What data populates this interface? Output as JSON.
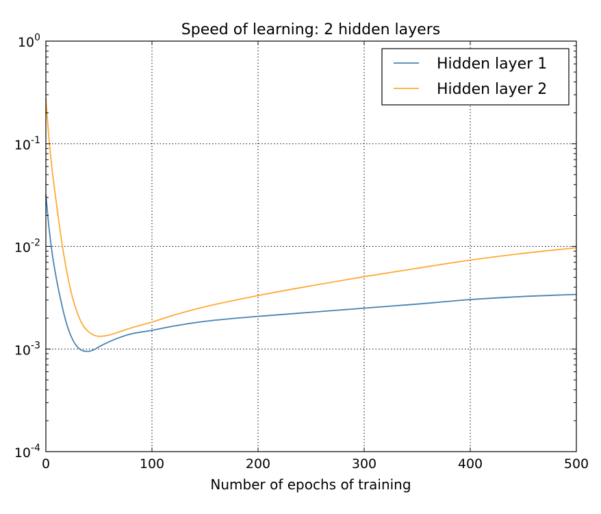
{
  "chart_data": {
    "type": "line",
    "title": "Speed of learning: 2 hidden layers",
    "xlabel": "Number of epochs of training",
    "ylabel": "",
    "xlim": [
      0,
      500
    ],
    "ylim": [
      0.0001,
      1
    ],
    "yscale": "log",
    "grid": true,
    "legend_position": "top-right",
    "x_ticks": [
      0,
      100,
      200,
      300,
      400,
      500
    ],
    "y_ticks": [
      {
        "value": 1,
        "base": "10",
        "exp": "0"
      },
      {
        "value": 0.1,
        "base": "10",
        "exp": "-1"
      },
      {
        "value": 0.01,
        "base": "10",
        "exp": "-2"
      },
      {
        "value": 0.001,
        "base": "10",
        "exp": "-3"
      },
      {
        "value": 0.0001,
        "base": "10",
        "exp": "-4"
      }
    ],
    "series": [
      {
        "name": "Hidden layer 1",
        "color": "#4682b4",
        "points": [
          [
            0,
            0.032
          ],
          [
            3,
            0.015
          ],
          [
            6,
            0.0085
          ],
          [
            10,
            0.0048
          ],
          [
            15,
            0.0027
          ],
          [
            20,
            0.0017
          ],
          [
            25,
            0.00125
          ],
          [
            30,
            0.00104
          ],
          [
            35,
            0.00096
          ],
          [
            40,
            0.00095
          ],
          [
            45,
            0.00098
          ],
          [
            50,
            0.00105
          ],
          [
            60,
            0.00118
          ],
          [
            70,
            0.0013
          ],
          [
            80,
            0.0014
          ],
          [
            100,
            0.00152
          ],
          [
            120,
            0.00167
          ],
          [
            150,
            0.00186
          ],
          [
            200,
            0.00208
          ],
          [
            250,
            0.00228
          ],
          [
            300,
            0.0025
          ],
          [
            350,
            0.00274
          ],
          [
            400,
            0.00303
          ],
          [
            450,
            0.00325
          ],
          [
            500,
            0.0034
          ]
        ]
      },
      {
        "name": "Hidden layer 2",
        "color": "#ffa933",
        "points": [
          [
            0,
            0.28
          ],
          [
            3,
            0.11
          ],
          [
            6,
            0.055
          ],
          [
            10,
            0.026
          ],
          [
            15,
            0.011
          ],
          [
            20,
            0.0055
          ],
          [
            25,
            0.0032
          ],
          [
            30,
            0.0022
          ],
          [
            35,
            0.0017
          ],
          [
            40,
            0.00148
          ],
          [
            45,
            0.00137
          ],
          [
            50,
            0.00133
          ],
          [
            55,
            0.00134
          ],
          [
            60,
            0.00137
          ],
          [
            70,
            0.00148
          ],
          [
            80,
            0.0016
          ],
          [
            100,
            0.00183
          ],
          [
            120,
            0.00213
          ],
          [
            150,
            0.00258
          ],
          [
            200,
            0.00332
          ],
          [
            250,
            0.00413
          ],
          [
            300,
            0.00507
          ],
          [
            350,
            0.00612
          ],
          [
            400,
            0.00735
          ],
          [
            450,
            0.00855
          ],
          [
            500,
            0.0097
          ]
        ]
      }
    ]
  }
}
